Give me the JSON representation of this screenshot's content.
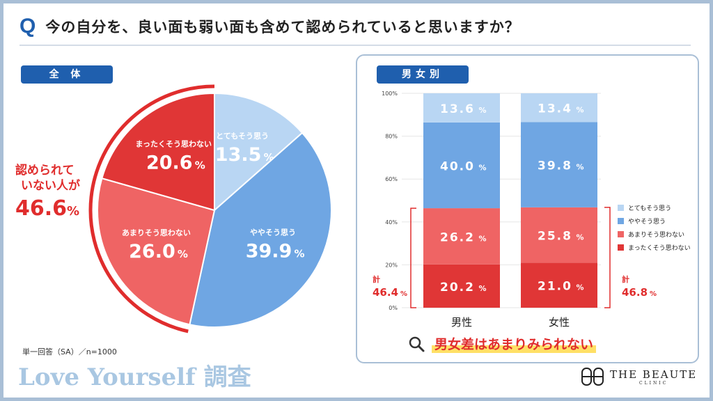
{
  "question": {
    "mark": "Q",
    "text": "今の自分を、良い面も弱い面も含めて認められていると思いますか？"
  },
  "left_panel": {
    "label": "全 体"
  },
  "right_panel": {
    "label": "男女別"
  },
  "callout_left": {
    "line1": "認められて",
    "line2": "いない人が",
    "value": "46.6",
    "unit": "%"
  },
  "footer": {
    "note": "単一回答（SA）／n=1000",
    "brand_left": "Love Yourself 調査",
    "brand_right_name": "THE BEAUTE",
    "brand_right_sub": "CLINIC"
  },
  "conclusion": {
    "text": "男女差はあまりみられない"
  },
  "colors": {
    "very": "#b9d6f3",
    "somewhat": "#6fa6e3",
    "not_much": "#ef6464",
    "not_at_all": "#e03636",
    "accent_blue": "#1f5fae",
    "accent_red": "#e02d2d"
  },
  "chart_data": [
    {
      "type": "pie",
      "title": "全 体",
      "slices": [
        {
          "label": "とてもそう思う",
          "value": 13.5,
          "display": "13.5",
          "color": "#b9d6f3"
        },
        {
          "label": "ややそう思う",
          "value": 39.9,
          "display": "39.9",
          "color": "#6fa6e3"
        },
        {
          "label": "あまりそう思わない",
          "value": 26.0,
          "display": "26.0",
          "color": "#ef6464"
        },
        {
          "label": "まったくそう思わない",
          "value": 20.6,
          "display": "20.6",
          "color": "#e03636"
        }
      ],
      "unit": "%"
    },
    {
      "type": "bar",
      "stacked": true,
      "title": "男女別",
      "categories": [
        "男性",
        "女性"
      ],
      "yticks": [
        "0%",
        "20%",
        "40%",
        "60%",
        "80%",
        "100%"
      ],
      "ylim": [
        0,
        100
      ],
      "series": [
        {
          "name": "まったくそう思わない",
          "values": [
            20.2,
            21.0
          ],
          "display": [
            "20.2",
            "21.0"
          ],
          "color": "#e03636"
        },
        {
          "name": "あまりそう思わない",
          "values": [
            26.2,
            25.8
          ],
          "display": [
            "26.2",
            "25.8"
          ],
          "color": "#ef6464"
        },
        {
          "name": "ややそう思う",
          "values": [
            40.0,
            39.8
          ],
          "display": [
            "40.0",
            "39.8"
          ],
          "color": "#6fa6e3"
        },
        {
          "name": "とてもそう思う",
          "values": [
            13.6,
            13.4
          ],
          "display": [
            "13.6",
            "13.4"
          ],
          "color": "#b9d6f3"
        }
      ],
      "legend": [
        "とてもそう思う",
        "ややそう思う",
        "あまりそう思わない",
        "まったくそう思わない"
      ],
      "legend_placement": "right",
      "totals": [
        {
          "label": "計",
          "value": "46.4",
          "unit": "%"
        },
        {
          "label": "計",
          "value": "46.8",
          "unit": "%"
        }
      ],
      "unit": "%"
    }
  ]
}
